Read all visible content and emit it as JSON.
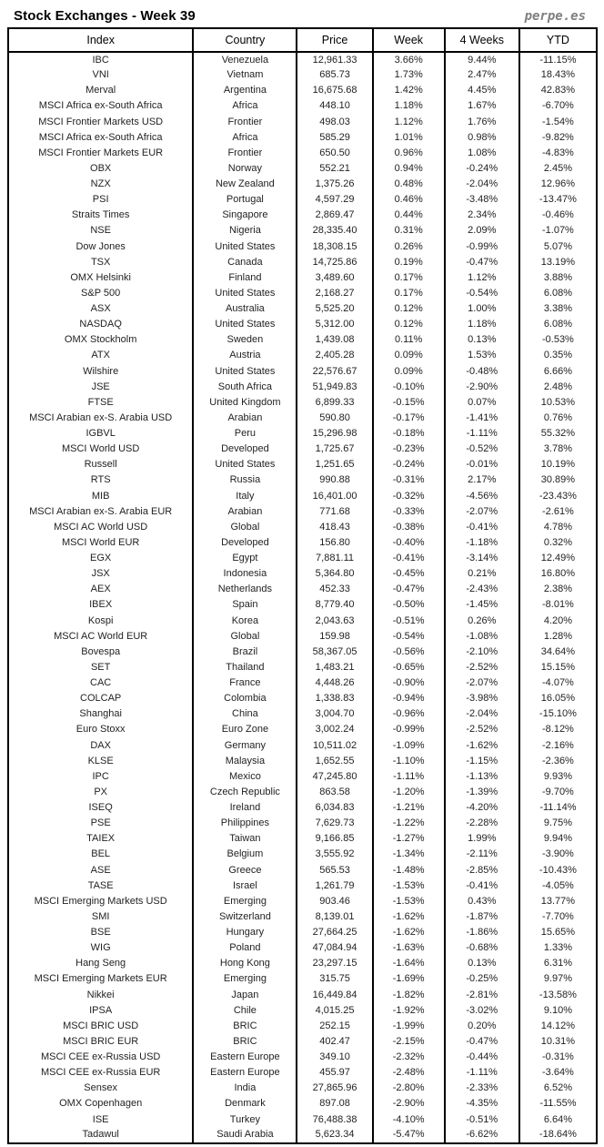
{
  "header": {
    "title": "Stock Exchanges - Week 39",
    "brand": "perpe.es"
  },
  "colors": {
    "positive": "#3fa34b",
    "negative": "#fa463c",
    "text": "#1f1f1f",
    "brand": "#7f7f7f",
    "border": "#000000"
  },
  "chart_data": {
    "type": "table",
    "title": "Stock Exchanges - Week 39",
    "columns": [
      "Index",
      "Country",
      "Price",
      "Week",
      "4 Weeks",
      "YTD"
    ],
    "rows": [
      [
        "IBC",
        "Venezuela",
        "12,961.33",
        "3.66%",
        "9.44%",
        "-11.15%"
      ],
      [
        "VNI",
        "Vietnam",
        "685.73",
        "1.73%",
        "2.47%",
        "18.43%"
      ],
      [
        "Merval",
        "Argentina",
        "16,675.68",
        "1.42%",
        "4.45%",
        "42.83%"
      ],
      [
        "MSCI Africa ex-South Africa",
        "Africa",
        "448.10",
        "1.18%",
        "1.67%",
        "-6.70%"
      ],
      [
        "MSCI Frontier Markets USD",
        "Frontier",
        "498.03",
        "1.12%",
        "1.76%",
        "-1.54%"
      ],
      [
        "MSCI Africa ex-South Africa",
        "Africa",
        "585.29",
        "1.01%",
        "0.98%",
        "-9.82%"
      ],
      [
        "MSCI Frontier Markets EUR",
        "Frontier",
        "650.50",
        "0.96%",
        "1.08%",
        "-4.83%"
      ],
      [
        "OBX",
        "Norway",
        "552.21",
        "0.94%",
        "-0.24%",
        "2.45%"
      ],
      [
        "NZX",
        "New Zealand",
        "1,375.26",
        "0.48%",
        "-2.04%",
        "12.96%"
      ],
      [
        "PSI",
        "Portugal",
        "4,597.29",
        "0.46%",
        "-3.48%",
        "-13.47%"
      ],
      [
        "Straits Times",
        "Singapore",
        "2,869.47",
        "0.44%",
        "2.34%",
        "-0.46%"
      ],
      [
        "NSE",
        "Nigeria",
        "28,335.40",
        "0.31%",
        "2.09%",
        "-1.07%"
      ],
      [
        "Dow Jones",
        "United States",
        "18,308.15",
        "0.26%",
        "-0.99%",
        "5.07%"
      ],
      [
        "TSX",
        "Canada",
        "14,725.86",
        "0.19%",
        "-0.47%",
        "13.19%"
      ],
      [
        "OMX Helsinki",
        "Finland",
        "3,489.60",
        "0.17%",
        "1.12%",
        "3.88%"
      ],
      [
        "S&P 500",
        "United States",
        "2,168.27",
        "0.17%",
        "-0.54%",
        "6.08%"
      ],
      [
        "ASX",
        "Australia",
        "5,525.20",
        "0.12%",
        "1.00%",
        "3.38%"
      ],
      [
        "NASDAQ",
        "United States",
        "5,312.00",
        "0.12%",
        "1.18%",
        "6.08%"
      ],
      [
        "OMX Stockholm",
        "Sweden",
        "1,439.08",
        "0.11%",
        "0.13%",
        "-0.53%"
      ],
      [
        "ATX",
        "Austria",
        "2,405.28",
        "0.09%",
        "1.53%",
        "0.35%"
      ],
      [
        "Wilshire",
        "United States",
        "22,576.67",
        "0.09%",
        "-0.48%",
        "6.66%"
      ],
      [
        "JSE",
        "South Africa",
        "51,949.83",
        "-0.10%",
        "-2.90%",
        "2.48%"
      ],
      [
        "FTSE",
        "United Kingdom",
        "6,899.33",
        "-0.15%",
        "0.07%",
        "10.53%"
      ],
      [
        "MSCI Arabian ex-S. Arabia USD",
        "Arabian",
        "590.80",
        "-0.17%",
        "-1.41%",
        "0.76%"
      ],
      [
        "IGBVL",
        "Peru",
        "15,296.98",
        "-0.18%",
        "-1.11%",
        "55.32%"
      ],
      [
        "MSCI World USD",
        "Developed",
        "1,725.67",
        "-0.23%",
        "-0.52%",
        "3.78%"
      ],
      [
        "Russell",
        "United States",
        "1,251.65",
        "-0.24%",
        "-0.01%",
        "10.19%"
      ],
      [
        "RTS",
        "Russia",
        "990.88",
        "-0.31%",
        "2.17%",
        "30.89%"
      ],
      [
        "MIB",
        "Italy",
        "16,401.00",
        "-0.32%",
        "-4.56%",
        "-23.43%"
      ],
      [
        "MSCI Arabian ex-S. Arabia EUR",
        "Arabian",
        "771.68",
        "-0.33%",
        "-2.07%",
        "-2.61%"
      ],
      [
        "MSCI AC World USD",
        "Global",
        "418.43",
        "-0.38%",
        "-0.41%",
        "4.78%"
      ],
      [
        "MSCI World EUR",
        "Developed",
        "156.80",
        "-0.40%",
        "-1.18%",
        "0.32%"
      ],
      [
        "EGX",
        "Egypt",
        "7,881.11",
        "-0.41%",
        "-3.14%",
        "12.49%"
      ],
      [
        "JSX",
        "Indonesia",
        "5,364.80",
        "-0.45%",
        "0.21%",
        "16.80%"
      ],
      [
        "AEX",
        "Netherlands",
        "452.33",
        "-0.47%",
        "-2.43%",
        "2.38%"
      ],
      [
        "IBEX",
        "Spain",
        "8,779.40",
        "-0.50%",
        "-1.45%",
        "-8.01%"
      ],
      [
        "Kospi",
        "Korea",
        "2,043.63",
        "-0.51%",
        "0.26%",
        "4.20%"
      ],
      [
        "MSCI AC World EUR",
        "Global",
        "159.98",
        "-0.54%",
        "-1.08%",
        "1.28%"
      ],
      [
        "Bovespa",
        "Brazil",
        "58,367.05",
        "-0.56%",
        "-2.10%",
        "34.64%"
      ],
      [
        "SET",
        "Thailand",
        "1,483.21",
        "-0.65%",
        "-2.52%",
        "15.15%"
      ],
      [
        "CAC",
        "France",
        "4,448.26",
        "-0.90%",
        "-2.07%",
        "-4.07%"
      ],
      [
        "COLCAP",
        "Colombia",
        "1,338.83",
        "-0.94%",
        "-3.98%",
        "16.05%"
      ],
      [
        "Shanghai",
        "China",
        "3,004.70",
        "-0.96%",
        "-2.04%",
        "-15.10%"
      ],
      [
        "Euro Stoxx",
        "Euro Zone",
        "3,002.24",
        "-0.99%",
        "-2.52%",
        "-8.12%"
      ],
      [
        "DAX",
        "Germany",
        "10,511.02",
        "-1.09%",
        "-1.62%",
        "-2.16%"
      ],
      [
        "KLSE",
        "Malaysia",
        "1,652.55",
        "-1.10%",
        "-1.15%",
        "-2.36%"
      ],
      [
        "IPC",
        "Mexico",
        "47,245.80",
        "-1.11%",
        "-1.13%",
        "9.93%"
      ],
      [
        "PX",
        "Czech Republic",
        "863.58",
        "-1.20%",
        "-1.39%",
        "-9.70%"
      ],
      [
        "ISEQ",
        "Ireland",
        "6,034.83",
        "-1.21%",
        "-4.20%",
        "-11.14%"
      ],
      [
        "PSE",
        "Philippines",
        "7,629.73",
        "-1.22%",
        "-2.28%",
        "9.75%"
      ],
      [
        "TAIEX",
        "Taiwan",
        "9,166.85",
        "-1.27%",
        "1.99%",
        "9.94%"
      ],
      [
        "BEL",
        "Belgium",
        "3,555.92",
        "-1.34%",
        "-2.11%",
        "-3.90%"
      ],
      [
        "ASE",
        "Greece",
        "565.53",
        "-1.48%",
        "-2.85%",
        "-10.43%"
      ],
      [
        "TASE",
        "Israel",
        "1,261.79",
        "-1.53%",
        "-0.41%",
        "-4.05%"
      ],
      [
        "MSCI Emerging Markets USD",
        "Emerging",
        "903.46",
        "-1.53%",
        "0.43%",
        "13.77%"
      ],
      [
        "SMI",
        "Switzerland",
        "8,139.01",
        "-1.62%",
        "-1.87%",
        "-7.70%"
      ],
      [
        "BSE",
        "Hungary",
        "27,664.25",
        "-1.62%",
        "-1.86%",
        "15.65%"
      ],
      [
        "WIG",
        "Poland",
        "47,084.94",
        "-1.63%",
        "-0.68%",
        "1.33%"
      ],
      [
        "Hang Seng",
        "Hong Kong",
        "23,297.15",
        "-1.64%",
        "0.13%",
        "6.31%"
      ],
      [
        "MSCI Emerging Markets EUR",
        "Emerging",
        "315.75",
        "-1.69%",
        "-0.25%",
        "9.97%"
      ],
      [
        "Nikkei",
        "Japan",
        "16,449.84",
        "-1.82%",
        "-2.81%",
        "-13.58%"
      ],
      [
        "IPSA",
        "Chile",
        "4,015.25",
        "-1.92%",
        "-3.02%",
        "9.10%"
      ],
      [
        "MSCI BRIC USD",
        "BRIC",
        "252.15",
        "-1.99%",
        "0.20%",
        "14.12%"
      ],
      [
        "MSCI BRIC EUR",
        "BRIC",
        "402.47",
        "-2.15%",
        "-0.47%",
        "10.31%"
      ],
      [
        "MSCI CEE ex-Russia USD",
        "Eastern Europe",
        "349.10",
        "-2.32%",
        "-0.44%",
        "-0.31%"
      ],
      [
        "MSCI CEE ex-Russia EUR",
        "Eastern Europe",
        "455.97",
        "-2.48%",
        "-1.11%",
        "-3.64%"
      ],
      [
        "Sensex",
        "India",
        "27,865.96",
        "-2.80%",
        "-2.33%",
        "6.52%"
      ],
      [
        "OMX Copenhagen",
        "Denmark",
        "897.08",
        "-2.90%",
        "-4.35%",
        "-11.55%"
      ],
      [
        "ISE",
        "Turkey",
        "76,488.38",
        "-4.10%",
        "-0.51%",
        "6.64%"
      ],
      [
        "Tadawul",
        "Saudi Arabia",
        "5,623.34",
        "-5.47%",
        "-6.62%",
        "-18.64%"
      ]
    ]
  }
}
